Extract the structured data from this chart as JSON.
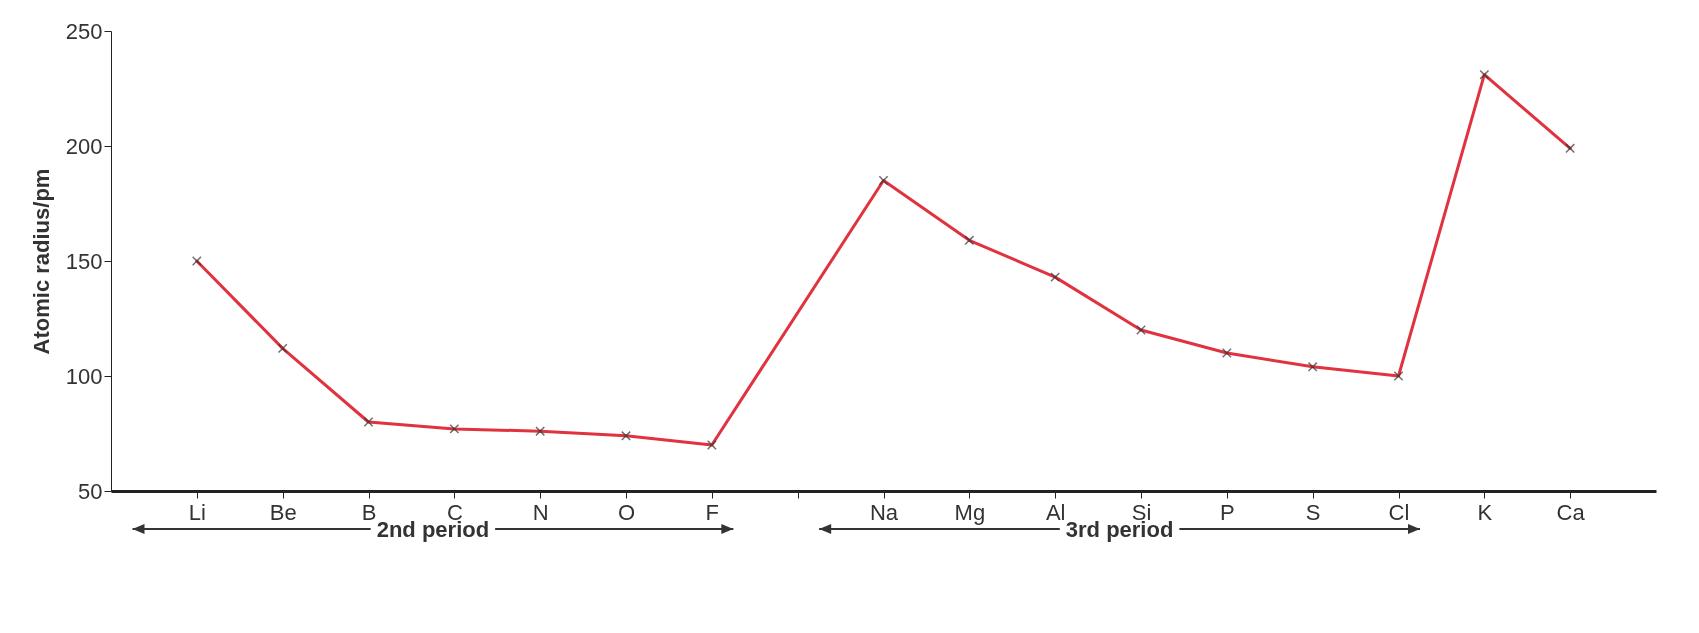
{
  "chart_data": {
    "type": "line",
    "ylabel": "Atomic radius/pm",
    "categories": [
      "Li",
      "Be",
      "B",
      "C",
      "N",
      "O",
      "F",
      null,
      "Na",
      "Mg",
      "Al",
      "Si",
      "P",
      "S",
      "Cl",
      "K",
      "Ca"
    ],
    "series": [
      {
        "color": "#e0323f",
        "values": [
          150,
          112,
          80,
          77,
          76,
          74,
          70,
          null,
          185,
          159,
          143,
          120,
          110,
          104,
          100,
          231,
          199
        ]
      }
    ],
    "ylim": [
      50,
      250
    ],
    "yticks": [
      50,
      100,
      150,
      200,
      250
    ],
    "grid": false,
    "marker": "cross",
    "line_style": "solid",
    "annotations": [
      "2nd period",
      "3rd period"
    ]
  }
}
